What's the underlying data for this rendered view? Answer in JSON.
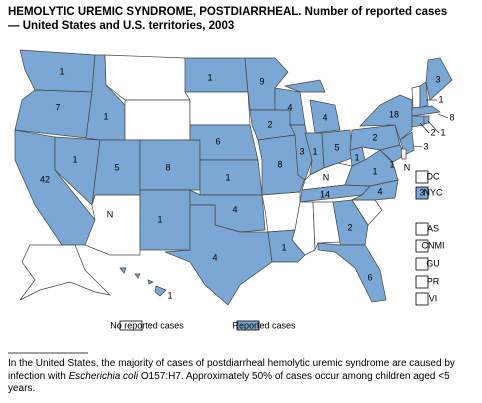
{
  "title": "HEMOLYTIC UREMIC SYNDROME, POSTDIARRHEAL. Number of reported cases — United States and U.S. territories, 2003",
  "colors": {
    "reported": "#7ba7d4",
    "none": "#ffffff"
  },
  "states": {
    "WA": 1,
    "OR": 7,
    "CA": 42,
    "NV": 1,
    "ID": 1,
    "UT": 5,
    "AZ": "N",
    "CO": 8,
    "NM": 1,
    "ND": 1,
    "NE": 6,
    "KS": 1,
    "OK": 4,
    "TX": 4,
    "MN": 9,
    "IA": 2,
    "MO": 8,
    "WI": 4,
    "IL": 3,
    "MI": 4,
    "IN": 1,
    "OH": 5,
    "KY": "N",
    "TN": 14,
    "LA": 1,
    "GA": 2,
    "FL": 6,
    "NC": 4,
    "VA": 1,
    "WV": 1,
    "PA": 2,
    "NY": 18,
    "NJ": 3,
    "MD": 1,
    "DE": "N",
    "NH": 1,
    "ME": 3,
    "MA": 8,
    "CT": 2,
    "RI": 1,
    "HI": 1
  },
  "boxes": [
    {
      "label": "DC"
    },
    {
      "label": "NYC",
      "value": 3
    },
    {
      "label": "AS"
    },
    {
      "label": "CNMI"
    },
    {
      "label": "GU"
    },
    {
      "label": "PR"
    },
    {
      "label": "VI"
    }
  ],
  "legend": {
    "none": "No reported cases",
    "reported": "Reported cases"
  },
  "footnote": [
    "In the United States, the majority of cases of postdiarrheal hemolytic uremic syndrome are caused by infection with ",
    "Escherichia coli",
    " O157:H7. Approximately 50% of cases occur among children aged <5 years."
  ]
}
